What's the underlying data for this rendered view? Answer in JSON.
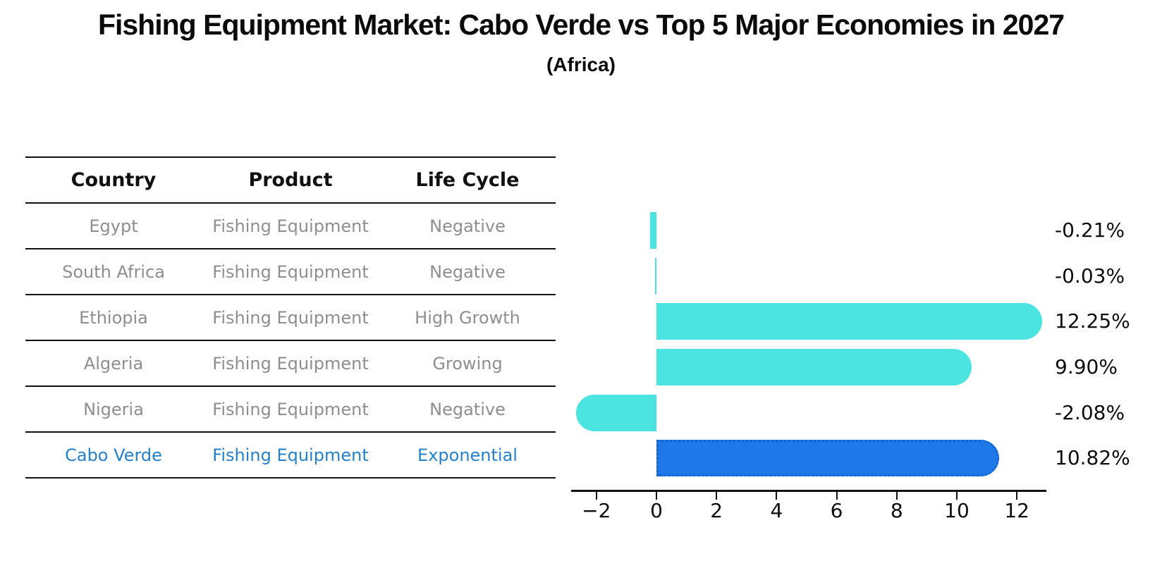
{
  "page": {
    "title": "Fishing Equipment Market: Cabo Verde vs Top 5 Major Economies in 2027",
    "subtitle": "(Africa)",
    "background": "#ffffff"
  },
  "table": {
    "headers": [
      "Country",
      "Product",
      "Life Cycle"
    ],
    "rows": [
      {
        "country": "Egypt",
        "product": "Fishing Equipment",
        "life_cycle": "Negative",
        "highlighted": false
      },
      {
        "country": "South Africa",
        "product": "Fishing Equipment",
        "life_cycle": "Negative",
        "highlighted": false
      },
      {
        "country": "Ethiopia",
        "product": "Fishing Equipment",
        "life_cycle": "High Growth",
        "highlighted": false
      },
      {
        "country": "Algeria",
        "product": "Fishing Equipment",
        "life_cycle": "Growing",
        "highlighted": false
      },
      {
        "country": "Nigeria",
        "product": "Fishing Equipment",
        "life_cycle": "Negative",
        "highlighted": false
      },
      {
        "country": "Cabo Verde",
        "product": "Fishing Equipment",
        "life_cycle": "Exponential",
        "highlighted": true
      }
    ],
    "body_text_color": "#8e8e8e",
    "header_text_color": "#111111",
    "highlight_text_color": "#2481cd",
    "line_color": "#111111"
  },
  "chart_data": {
    "type": "bar",
    "orientation": "horizontal",
    "categories": [
      "Egypt",
      "South Africa",
      "Ethiopia",
      "Algeria",
      "Nigeria",
      "Cabo Verde"
    ],
    "values": [
      -0.21,
      -0.03,
      12.25,
      9.9,
      -2.08,
      10.82
    ],
    "value_labels": [
      "-0.21%",
      "-0.03%",
      "12.25%",
      "9.90%",
      "-2.08%",
      "10.82%"
    ],
    "xticks": [
      -2,
      0,
      2,
      4,
      6,
      8,
      10,
      12
    ],
    "xtick_labels": [
      "−2",
      "0",
      "2",
      "4",
      "6",
      "8",
      "10",
      "12"
    ],
    "xlim": [
      -2.85,
      13.0
    ],
    "grid": false,
    "legend": false,
    "bar_color": "#4be4e0",
    "highlight_index": 5,
    "highlight_bar_color": "#1e78e8",
    "highlight_bar_border": "#1563d2",
    "axis_color": "#111111",
    "ylabel": "",
    "xlabel": ""
  }
}
